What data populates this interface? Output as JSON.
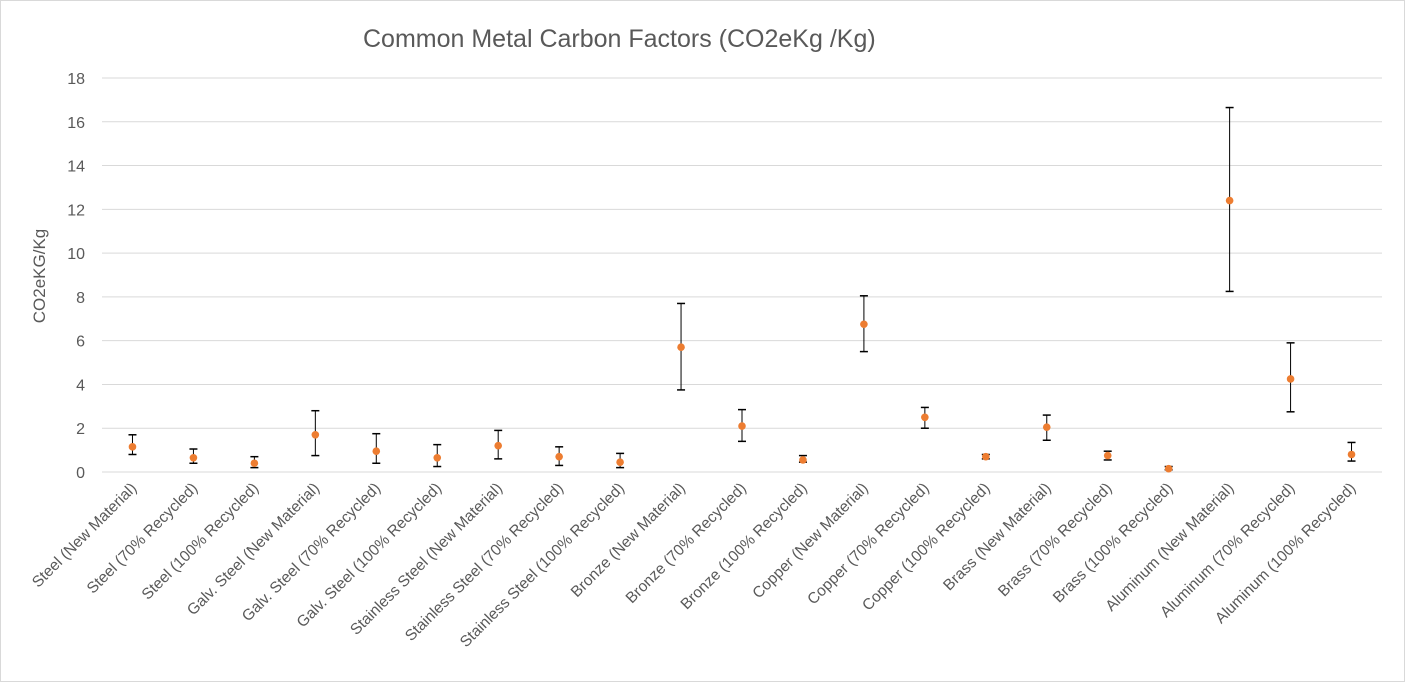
{
  "chart_data": {
    "type": "scatter",
    "title": "Common Metal Carbon Factors (CO2eKg /Kg)",
    "xlabel": "",
    "ylabel": "CO2eKG/Kg",
    "ylim": [
      0,
      18
    ],
    "yticks": [
      "0",
      "2",
      "4",
      "6",
      "8",
      "10",
      "12",
      "14",
      "16",
      "18"
    ],
    "grid": true,
    "legend": "none",
    "colors": {
      "marker": "#ed7d31",
      "error_bar": "#000000",
      "grid": "#d9d9d9",
      "text": "#595959"
    },
    "categories": [
      "Steel (New Material)",
      "Steel (70% Recycled)",
      "Steel (100% Recycled)",
      "Galv. Steel (New Material)",
      "Galv. Steel (70% Recycled)",
      "Galv. Steel (100% Recycled)",
      "Stainless Steel (New Material)",
      "Stainless Steel (70% Recycled)",
      "Stainless Steel (100% Recycled)",
      "Bronze (New Material)",
      "Bronze (70% Recycled)",
      "Bronze (100% Recycled)",
      "Copper (New Material)",
      "Copper (70% Recycled)",
      "Copper (100% Recycled)",
      "Brass (New Material)",
      "Brass (70% Recycled)",
      "Brass (100% Recycled)",
      "Aluminum (New Material)",
      "Aluminum (70% Recycled)",
      "Aluminum (100% Recycled)"
    ],
    "series": [
      {
        "values": [
          1.15,
          0.65,
          0.4,
          1.7,
          0.95,
          0.65,
          1.2,
          0.7,
          0.45,
          5.7,
          2.1,
          0.55,
          6.75,
          2.5,
          0.7,
          2.05,
          0.75,
          0.15,
          12.4,
          4.25,
          0.8
        ],
        "error_lower": [
          0.8,
          0.4,
          0.2,
          0.75,
          0.4,
          0.25,
          0.6,
          0.3,
          0.2,
          3.75,
          1.4,
          0.45,
          5.5,
          2.0,
          0.6,
          1.45,
          0.55,
          0.1,
          8.25,
          2.75,
          0.5
        ],
        "error_upper": [
          1.7,
          1.05,
          0.7,
          2.8,
          1.75,
          1.25,
          1.9,
          1.15,
          0.85,
          7.7,
          2.85,
          0.75,
          8.05,
          2.95,
          0.8,
          2.6,
          0.95,
          0.25,
          16.65,
          5.9,
          1.35
        ]
      }
    ]
  }
}
